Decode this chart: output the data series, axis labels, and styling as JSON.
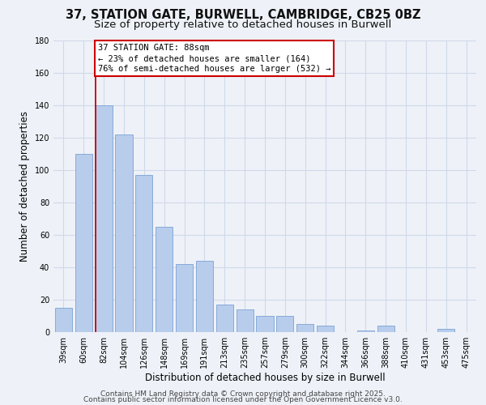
{
  "title": "37, STATION GATE, BURWELL, CAMBRIDGE, CB25 0BZ",
  "subtitle": "Size of property relative to detached houses in Burwell",
  "xlabel": "Distribution of detached houses by size in Burwell",
  "ylabel": "Number of detached properties",
  "categories": [
    "39sqm",
    "60sqm",
    "82sqm",
    "104sqm",
    "126sqm",
    "148sqm",
    "169sqm",
    "191sqm",
    "213sqm",
    "235sqm",
    "257sqm",
    "279sqm",
    "300sqm",
    "322sqm",
    "344sqm",
    "366sqm",
    "388sqm",
    "410sqm",
    "431sqm",
    "453sqm",
    "475sqm"
  ],
  "values": [
    15,
    110,
    140,
    122,
    97,
    65,
    42,
    44,
    17,
    14,
    10,
    10,
    5,
    4,
    0,
    1,
    4,
    0,
    0,
    2,
    0
  ],
  "bar_color": "#b8ccec",
  "bar_edge_color": "#7ba3d4",
  "vline_color": "#cc0000",
  "vline_x_index": 2,
  "annotation_line1": "37 STATION GATE: 88sqm",
  "annotation_line2": "← 23% of detached houses are smaller (164)",
  "annotation_line3": "76% of semi-detached houses are larger (532) →",
  "box_edge_color": "#cc0000",
  "ylim": [
    0,
    180
  ],
  "yticks": [
    0,
    20,
    40,
    60,
    80,
    100,
    120,
    140,
    160,
    180
  ],
  "footer_line1": "Contains HM Land Registry data © Crown copyright and database right 2025.",
  "footer_line2": "Contains public sector information licensed under the Open Government Licence v3.0.",
  "bg_color": "#eef2f8",
  "grid_color": "#d0d8e8",
  "title_fontsize": 10.5,
  "subtitle_fontsize": 9.5,
  "xlabel_fontsize": 8.5,
  "ylabel_fontsize": 8.5,
  "tick_fontsize": 7,
  "annotation_fontsize": 7.5,
  "footer_fontsize": 6.5
}
